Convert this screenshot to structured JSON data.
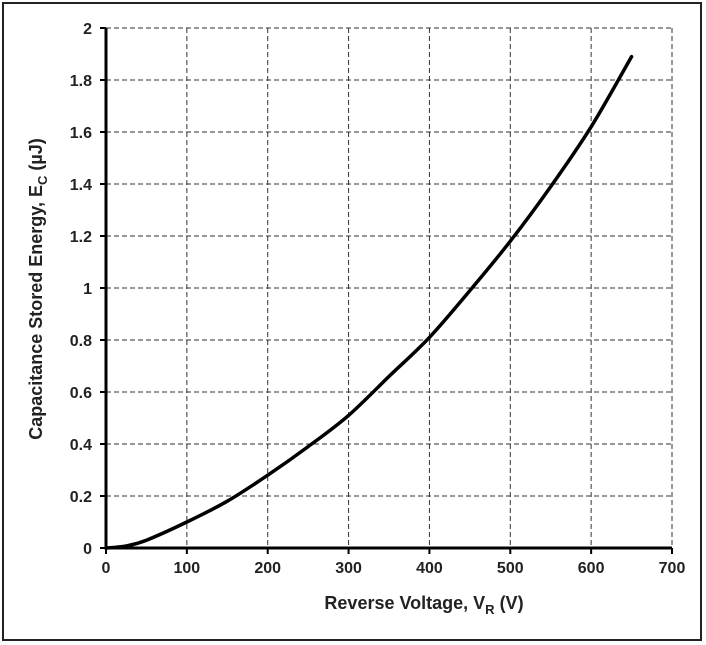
{
  "chart_data": {
    "type": "line",
    "x_axis": {
      "label_main": "Reverse Voltage, V",
      "label_sub": "R",
      "label_suffix": " (V)",
      "range": [
        0,
        700
      ],
      "ticks": [
        0,
        100,
        200,
        300,
        400,
        500,
        600,
        700
      ],
      "tick_labels": [
        "0",
        "100",
        "200",
        "300",
        "400",
        "500",
        "600",
        "700"
      ]
    },
    "y_axis": {
      "label_main": "Capacitance Stored Energy, E",
      "label_sub": "C",
      "label_suffix": " (µJ)",
      "range": [
        0,
        2
      ],
      "ticks": [
        0,
        0.2,
        0.4,
        0.6,
        0.8,
        1,
        1.2,
        1.4,
        1.6,
        1.8,
        2
      ],
      "tick_labels": [
        "0",
        "0.2",
        "0.4",
        "0.6",
        "0.8",
        "1",
        "1.2",
        "1.4",
        "1.6",
        "1.8",
        "2"
      ]
    },
    "grid": true,
    "grid_style": "dashed",
    "series": [
      {
        "color": "#000000",
        "x": [
          0,
          25,
          50,
          100,
          150,
          200,
          250,
          300,
          350,
          400,
          450,
          500,
          550,
          600,
          650
        ],
        "y": [
          0,
          0.008,
          0.03,
          0.1,
          0.18,
          0.28,
          0.39,
          0.51,
          0.66,
          0.81,
          0.99,
          1.18,
          1.39,
          1.62,
          1.89
        ]
      }
    ]
  }
}
